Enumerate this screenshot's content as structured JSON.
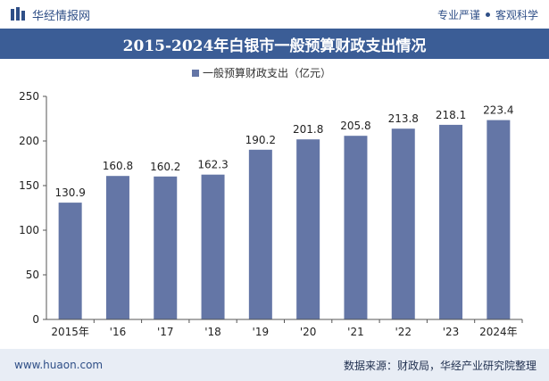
{
  "header": {
    "brand": "华经情报网",
    "tag_left": "专业严谨",
    "tag_right": "客观科学"
  },
  "chart_data": {
    "type": "bar",
    "title": "2015-2024年白银市一般预算财政支出情况",
    "legend": "一般预算财政支出（亿元）",
    "legend_position": "top",
    "categories": [
      "2015年",
      "'16",
      "'17",
      "'18",
      "'19",
      "'20",
      "'21",
      "'22",
      "'23",
      "2024年"
    ],
    "series": [
      {
        "name": "一般预算财政支出（亿元）",
        "values": [
          130.9,
          160.8,
          160.2,
          162.3,
          190.2,
          201.8,
          205.8,
          213.8,
          218.1,
          223.4
        ]
      }
    ],
    "ylim": [
      0,
      250
    ],
    "yticks": [
      0,
      50,
      100,
      150,
      200,
      250
    ],
    "grid": false,
    "bar_color": "#6476a6",
    "xlabel": "",
    "ylabel": ""
  },
  "footer": {
    "site": "www.huaon.com",
    "source": "数据来源：财政局，华经产业研究院整理"
  }
}
